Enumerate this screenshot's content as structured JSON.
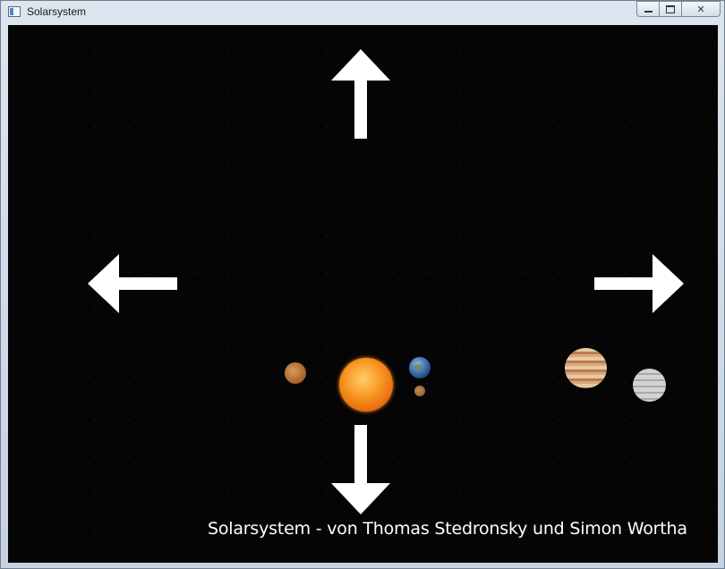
{
  "window": {
    "title": "Solarsystem",
    "controls": {
      "minimize_icon": "minimize-icon",
      "maximize_icon": "maximize-icon",
      "close_label": "✕"
    }
  },
  "scene": {
    "background": "#050505",
    "arrows": [
      {
        "direction": "up",
        "icon": "arrow-up-icon"
      },
      {
        "direction": "left",
        "icon": "arrow-left-icon"
      },
      {
        "direction": "right",
        "icon": "arrow-right-icon"
      },
      {
        "direction": "down",
        "icon": "arrow-down-icon"
      }
    ],
    "bodies": [
      {
        "name": "sun",
        "color": "#f6921e"
      },
      {
        "name": "mercury",
        "color": "#a56026"
      },
      {
        "name": "earth",
        "color": "#3e6fb0"
      },
      {
        "name": "moon",
        "color": "#875528"
      },
      {
        "name": "jupiter",
        "color": "#d7a97b"
      },
      {
        "name": "saturn",
        "color": "#c0c0c0"
      }
    ],
    "credit": "Solarsystem - von Thomas Stedronsky und Simon Wortha"
  }
}
